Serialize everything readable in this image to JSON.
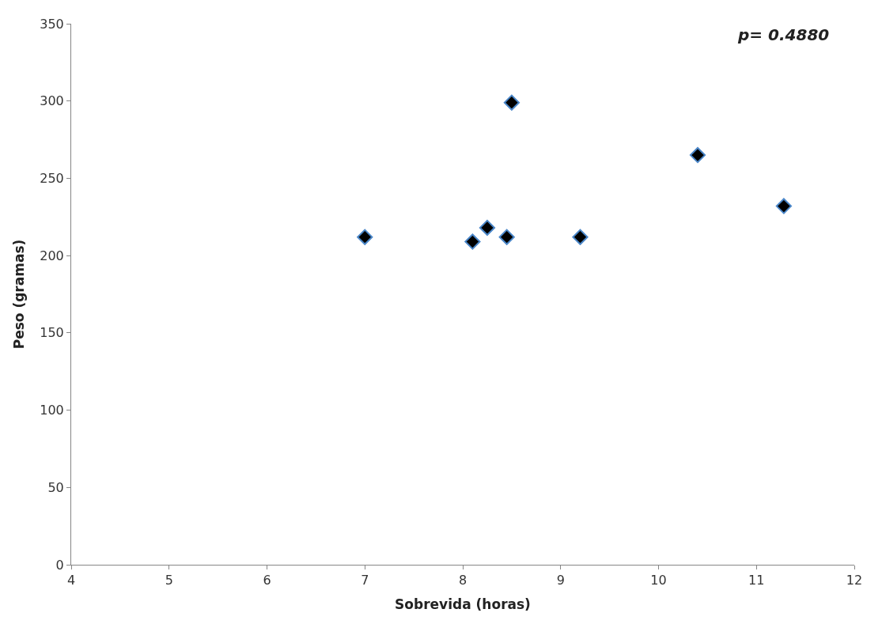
{
  "chart_data": {
    "type": "scatter",
    "xlabel": "Sobrevida (horas)",
    "ylabel": "Peso (gramas)",
    "annotations": [
      "p= 0.4880"
    ],
    "x": [
      7.0,
      8.1,
      8.25,
      8.45,
      8.5,
      9.2,
      10.4,
      11.28
    ],
    "series": [
      {
        "color": "#000000",
        "values": [
          212,
          209,
          218,
          212,
          299,
          212,
          265,
          232
        ]
      }
    ],
    "xlim": [
      4,
      12
    ],
    "xticks": [
      4,
      5,
      6,
      7,
      8,
      9,
      10,
      11,
      12
    ],
    "ylim": [
      0,
      350
    ],
    "yticks": [
      0,
      50,
      100,
      150,
      200,
      250,
      300,
      350
    ],
    "marker": "diamond",
    "legend": false
  }
}
